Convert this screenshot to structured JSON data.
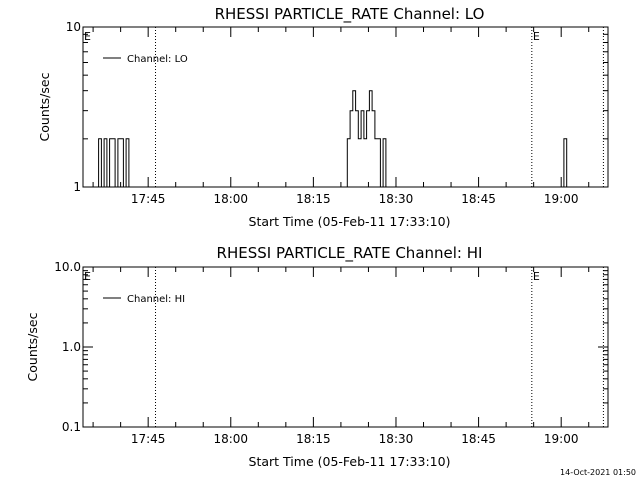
{
  "chart_data": [
    {
      "type": "line",
      "title": "RHESSI PARTICLE_RATE Channel: LO",
      "xlabel": "Start Time (05-Feb-11 17:33:10)",
      "ylabel": "Counts/sec",
      "yscale": "log",
      "ylim": [
        1,
        10
      ],
      "ytick_labels": [
        "1",
        "10"
      ],
      "xlim": [
        "17:33:10",
        "19:08:30"
      ],
      "xtick_labels": [
        "17:45",
        "18:00",
        "18:15",
        "18:30",
        "18:45",
        "19:00"
      ],
      "legend_placement": "top-left",
      "series": [
        {
          "name": "Channel: LO",
          "color": "#000000",
          "x": [
            "17:35:30",
            "17:36:00",
            "17:36:30",
            "17:37:00",
            "17:37:30",
            "17:38:00",
            "17:38:30",
            "17:39:00",
            "17:39:30",
            "17:40:00",
            "17:40:30",
            "17:41:00",
            "17:41:30",
            "18:20:40",
            "18:21:10",
            "18:21:40",
            "18:22:10",
            "18:22:40",
            "18:23:10",
            "18:23:40",
            "18:24:10",
            "18:24:40",
            "18:25:10",
            "18:25:40",
            "18:26:10",
            "18:26:40",
            "18:27:10",
            "18:27:40",
            "18:28:10",
            "19:00:00",
            "19:00:30",
            "19:01:00"
          ],
          "y": [
            1,
            2,
            1,
            2,
            1,
            2,
            2,
            1,
            2,
            2,
            1,
            2,
            1,
            1,
            2,
            3,
            4,
            3,
            2,
            3,
            2,
            3,
            4,
            3,
            2,
            2,
            1,
            2,
            1,
            1,
            2,
            1
          ]
        }
      ],
      "vlines": [
        "17:46:20",
        "18:54:40",
        "19:07:40"
      ],
      "annotations": [
        {
          "text": "E",
          "x": "17:33:10"
        },
        {
          "text": "E",
          "x": "18:54:40"
        }
      ]
    },
    {
      "type": "line",
      "title": "RHESSI PARTICLE_RATE Channel: HI",
      "xlabel": "Start Time (05-Feb-11 17:33:10)",
      "ylabel": "Counts/sec",
      "yscale": "log",
      "ylim": [
        0.1,
        10
      ],
      "ytick_labels": [
        "0.1",
        "1.0",
        "10.0"
      ],
      "xlim": [
        "17:33:10",
        "19:08:30"
      ],
      "xtick_labels": [
        "17:45",
        "18:00",
        "18:15",
        "18:30",
        "18:45",
        "19:00"
      ],
      "legend_placement": "top-left",
      "series": [
        {
          "name": "Channel: HI",
          "color": "#000000",
          "x": [],
          "y": []
        }
      ],
      "vlines": [
        "17:46:20",
        "18:54:40",
        "19:07:40"
      ],
      "annotations": [
        {
          "text": "E",
          "x": "17:33:10"
        },
        {
          "text": "E",
          "x": "18:54:40"
        }
      ]
    }
  ],
  "footer": {
    "timestamp": "14-Oct-2021 01:50"
  }
}
